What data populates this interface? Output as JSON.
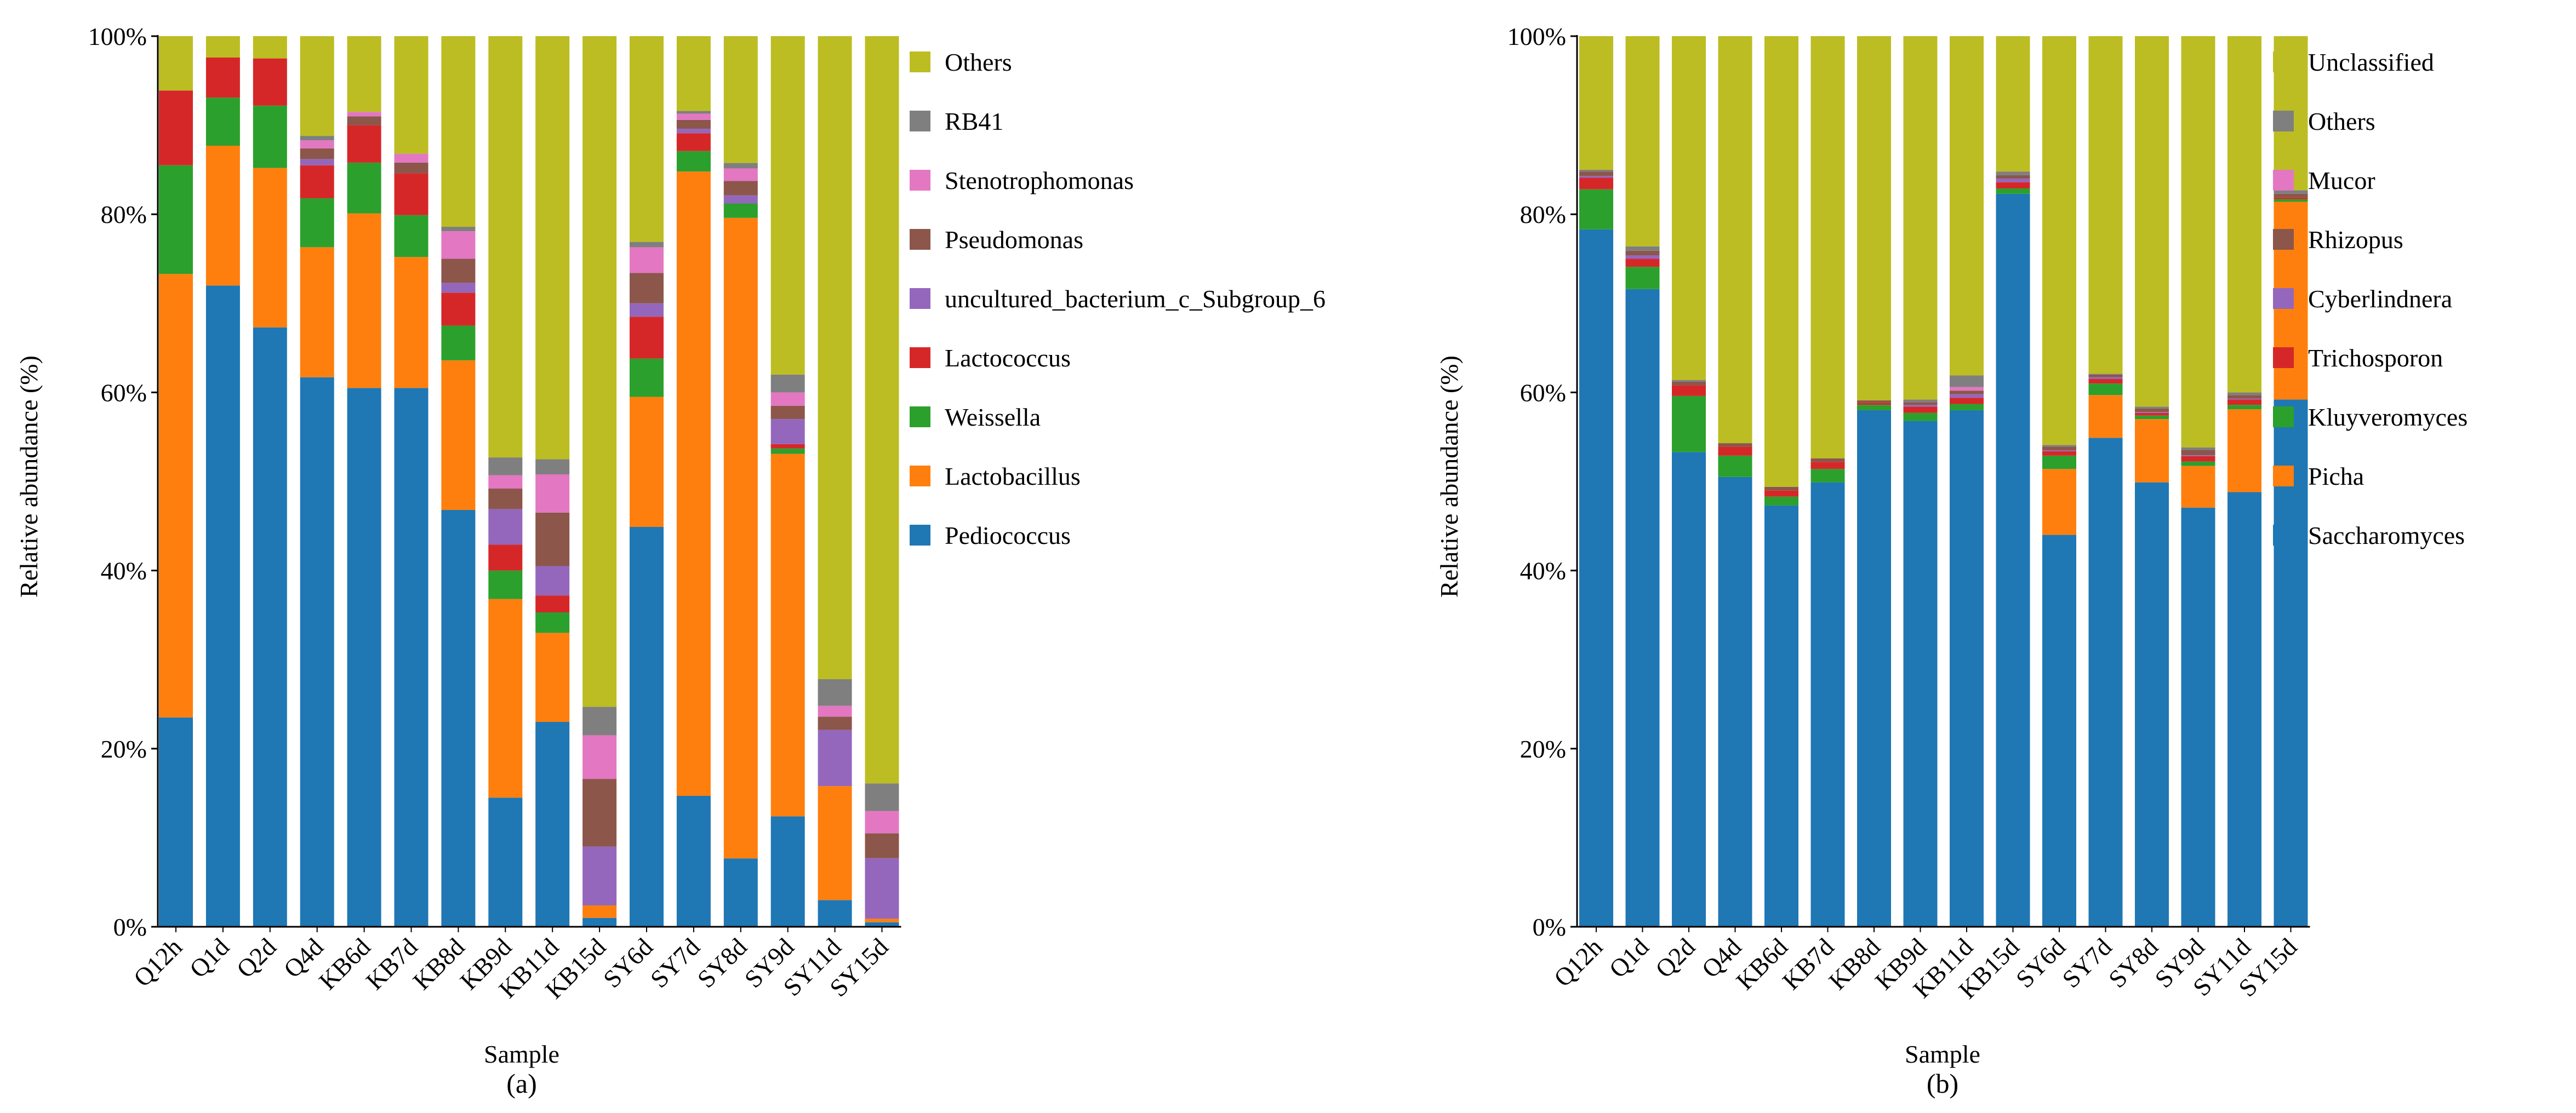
{
  "chart_data": [
    {
      "type": "bar",
      "stacked": true,
      "panel_label": "(a)",
      "xlabel": "Sample",
      "ylabel": "Relative abundance (%)",
      "ylim": [
        0,
        100
      ],
      "yticks": [
        "0%",
        "20%",
        "40%",
        "60%",
        "80%",
        "100%"
      ],
      "legend_position": "right",
      "categories": [
        "Q12h",
        "Q1d",
        "Q2d",
        "Q4d",
        "KB6d",
        "KB7d",
        "KB8d",
        "KB9d",
        "KB11d",
        "KB15d",
        "SY6d",
        "SY7d",
        "SY8d",
        "SY9d",
        "SY11d",
        "SY15d"
      ],
      "series": [
        {
          "name": "Pediococcus",
          "color": "#1f77b4",
          "values": [
            23.5,
            72.0,
            67.3,
            61.7,
            60.5,
            60.5,
            46.8,
            14.5,
            23.0,
            1.0,
            44.9,
            14.7,
            7.6,
            12.4,
            3.0,
            0.5
          ]
        },
        {
          "name": "Lactobacillus",
          "color": "#ff7f0e",
          "values": [
            49.8,
            15.7,
            17.9,
            14.6,
            19.6,
            14.7,
            16.8,
            22.3,
            10.0,
            1.4,
            14.6,
            70.1,
            71.2,
            40.7,
            12.8,
            0.4
          ]
        },
        {
          "name": "Weissella",
          "color": "#2ca02c",
          "values": [
            12.2,
            5.4,
            7.0,
            5.5,
            5.7,
            4.7,
            3.9,
            3.2,
            2.3,
            0.0,
            4.3,
            2.3,
            1.6,
            0.6,
            0.0,
            0.0
          ]
        },
        {
          "name": "Lactococcus",
          "color": "#d62728",
          "values": [
            8.4,
            4.5,
            5.3,
            3.7,
            4.2,
            4.7,
            3.7,
            2.9,
            1.9,
            0.0,
            4.7,
            2.0,
            0.0,
            0.5,
            0.0,
            0.0
          ]
        },
        {
          "name": "uncultured_bacterium_c_Subgroup_6",
          "color": "#9467bd",
          "values": [
            0.0,
            0.0,
            0.0,
            0.7,
            0.0,
            0.0,
            1.1,
            4.0,
            3.3,
            6.6,
            1.5,
            0.5,
            0.9,
            2.8,
            6.3,
            6.8
          ]
        },
        {
          "name": "Pseudomonas",
          "color": "#8c564b",
          "values": [
            0.0,
            0.0,
            0.0,
            1.2,
            1.0,
            1.2,
            2.7,
            2.3,
            6.0,
            7.6,
            3.4,
            1.0,
            1.6,
            1.5,
            1.5,
            2.8
          ]
        },
        {
          "name": "Stenotrophomonas",
          "color": "#e377c2",
          "values": [
            0.0,
            0.0,
            0.0,
            0.9,
            0.5,
            1.0,
            3.1,
            1.5,
            4.3,
            4.9,
            2.9,
            0.7,
            1.4,
            1.5,
            1.2,
            2.5
          ]
        },
        {
          "name": "RB41",
          "color": "#7f7f7f",
          "values": [
            0.0,
            0.0,
            0.0,
            0.5,
            0.0,
            0.0,
            0.5,
            2.0,
            1.7,
            3.2,
            0.6,
            0.3,
            0.6,
            2.0,
            3.0,
            3.1
          ]
        },
        {
          "name": "Others",
          "color": "#bcbd22",
          "values": [
            6.1,
            2.4,
            2.5,
            11.2,
            8.5,
            13.2,
            21.4,
            47.3,
            47.5,
            75.3,
            23.1,
            8.4,
            14.1,
            38.0,
            72.2,
            83.9
          ]
        }
      ]
    },
    {
      "type": "bar",
      "stacked": true,
      "panel_label": "(b)",
      "xlabel": "Sample",
      "ylabel": "Relative abundance (%)",
      "ylim": [
        0,
        100
      ],
      "yticks": [
        "0%",
        "20%",
        "40%",
        "60%",
        "80%",
        "100%"
      ],
      "legend_position": "right",
      "categories": [
        "Q12h",
        "Q1d",
        "Q2d",
        "Q4d",
        "KB6d",
        "KB7d",
        "KB8d",
        "KB9d",
        "KB11d",
        "KB15d",
        "SY6d",
        "SY7d",
        "SY8d",
        "SY9d",
        "SY11d",
        "SY15d"
      ],
      "series": [
        {
          "name": "Saccharomyces",
          "color": "#1f77b4",
          "values": [
            78.3,
            71.6,
            53.3,
            50.5,
            47.3,
            49.9,
            58.0,
            56.8,
            58.0,
            82.3,
            44.0,
            54.9,
            49.9,
            47.3,
            48.8,
            59.2
          ]
        },
        {
          "name": "Picha",
          "color": "#ff7f0e",
          "values": [
            0.0,
            0.0,
            0.0,
            0.0,
            0.0,
            0.0,
            0.0,
            0.0,
            0.0,
            0.0,
            7.4,
            4.8,
            7.1,
            4.7,
            9.3,
            22.2
          ]
        },
        {
          "name": "Kluyveromyces",
          "color": "#2ca02c",
          "values": [
            4.5,
            2.5,
            6.3,
            2.4,
            1.0,
            1.5,
            0.6,
            0.9,
            0.7,
            0.6,
            1.5,
            1.3,
            0.4,
            0.5,
            0.5,
            0.3
          ]
        },
        {
          "name": "Trichosporon",
          "color": "#d62728",
          "values": [
            1.3,
            0.9,
            1.2,
            1.0,
            0.7,
            0.8,
            0.2,
            0.7,
            0.7,
            0.7,
            0.5,
            0.5,
            0.3,
            0.6,
            0.6,
            0.2
          ]
        },
        {
          "name": "Cyberlindnera",
          "color": "#9467bd",
          "values": [
            0.2,
            0.4,
            0.0,
            0.0,
            0.0,
            0.0,
            0.0,
            0.2,
            0.4,
            0.4,
            0.1,
            0.2,
            0.1,
            0.1,
            0.1,
            0.0
          ]
        },
        {
          "name": "Rhizopus",
          "color": "#8c564b",
          "values": [
            0.5,
            0.5,
            0.4,
            0.4,
            0.4,
            0.4,
            0.3,
            0.3,
            0.4,
            0.4,
            0.4,
            0.3,
            0.4,
            0.6,
            0.4,
            0.4
          ]
        },
        {
          "name": "Mucor",
          "color": "#e377c2",
          "values": [
            0.0,
            0.0,
            0.0,
            0.0,
            0.0,
            0.0,
            0.0,
            0.0,
            0.4,
            0.0,
            0.0,
            0.0,
            0.0,
            0.0,
            0.0,
            0.0
          ]
        },
        {
          "name": "Others",
          "color": "#7f7f7f",
          "values": [
            0.2,
            0.5,
            0.2,
            0.0,
            0.0,
            0.0,
            0.0,
            0.3,
            1.3,
            0.4,
            0.2,
            0.1,
            0.2,
            0.3,
            0.3,
            0.4
          ]
        },
        {
          "name": "Unclassified",
          "color": "#bcbd22",
          "values": [
            15.0,
            23.6,
            38.6,
            45.7,
            50.6,
            47.4,
            40.9,
            40.8,
            38.1,
            15.2,
            45.9,
            37.9,
            41.6,
            46.4,
            40.0,
            17.3
          ]
        }
      ]
    }
  ]
}
